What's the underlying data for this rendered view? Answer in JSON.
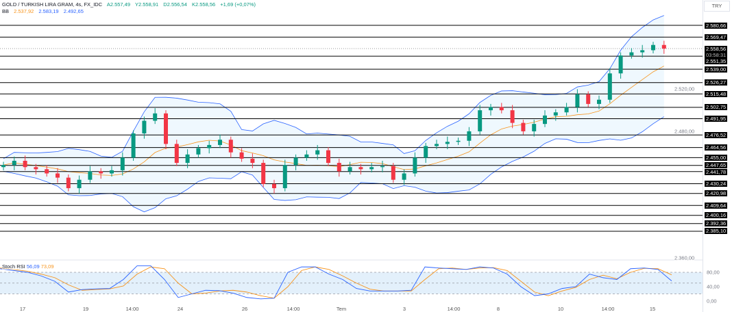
{
  "header": {
    "symbol": "GOLD / TURKISH LIRA GRAM, 4s, FX_IDC",
    "open": "A2.557,49",
    "high": "Y2.558,91",
    "low": "D2.556,54",
    "close": "K2.558,56",
    "change": "+1,69 (+0,07%)",
    "bb_label": "BB",
    "bb_basis": "2.537,92",
    "bb_upper": "2.583,19",
    "bb_lower": "2.492,65"
  },
  "currency": "TRY",
  "current_price": {
    "value": "2.558,56",
    "countdown": "03:58:31"
  },
  "levels": [
    2580.66,
    2569.47,
    2551.35,
    2539.0,
    2526.27,
    2515.48,
    2502.75,
    2491.95,
    2476.52,
    2464.56,
    2455.0,
    2447.65,
    2441.78,
    2430.24,
    2420.98,
    2409.64,
    2400.16,
    2392.36,
    2385.1
  ],
  "level_labels": [
    "2.580,66",
    "2.569,47",
    "2.551,35",
    "2.539,00",
    "2.526,27",
    "2.515,48",
    "2.502,75",
    "2.491,95",
    "2.476,52",
    "2.464,56",
    "2.455,00",
    "2.447,65",
    "2.441,78",
    "2.430,24",
    "2.420,98",
    "2.409,64",
    "2.400,16",
    "2.392,36",
    "2.385,10"
  ],
  "price_ticks": [
    {
      "v": 2520,
      "label": "2.520,00"
    },
    {
      "v": 2480,
      "label": "2.480,00"
    },
    {
      "v": 2360,
      "label": "2.360,00"
    }
  ],
  "stoch": {
    "label": "Stoch RSI",
    "k": "56,09",
    "d": "73,09",
    "ticks": [
      "80,00",
      "40,00",
      "0,00"
    ],
    "k_values": [
      90,
      85,
      80,
      70,
      55,
      25,
      32,
      34,
      35,
      60,
      98,
      98,
      60,
      10,
      20,
      30,
      29,
      22,
      10,
      6,
      8,
      80,
      95,
      95,
      75,
      60,
      35,
      28,
      28,
      28,
      30,
      95,
      92,
      90,
      88,
      95,
      92,
      75,
      40,
      15,
      20,
      35,
      40,
      75,
      65,
      60,
      90,
      92,
      88,
      56
    ],
    "d_values": [
      92,
      88,
      83,
      75,
      65,
      45,
      30,
      32,
      34,
      42,
      75,
      95,
      90,
      50,
      20,
      22,
      28,
      30,
      25,
      15,
      8,
      40,
      85,
      95,
      88,
      70,
      50,
      33,
      28,
      28,
      28,
      60,
      90,
      92,
      88,
      92,
      93,
      85,
      55,
      25,
      15,
      28,
      38,
      60,
      72,
      62,
      80,
      91,
      90,
      73
    ]
  },
  "x_labels": [
    "17",
    "19",
    "14:00",
    "24",
    "26",
    "14:00",
    "Tem",
    "3",
    "14:00",
    "8",
    "10",
    "14:00",
    "15"
  ],
  "colors": {
    "up": "#089981",
    "down": "#f23645",
    "bb": "#2962ff",
    "basis": "#f7931a",
    "k": "#2962ff",
    "d": "#f7931a"
  },
  "chart_data": {
    "type": "candlestick",
    "closes": [
      2448,
      2452,
      2446,
      2444,
      2440,
      2436,
      2426,
      2434,
      2442,
      2440,
      2443,
      2455,
      2478,
      2490,
      2497,
      2468,
      2450,
      2458,
      2464,
      2467,
      2472,
      2460,
      2454,
      2450,
      2430,
      2426,
      2448,
      2455,
      2458,
      2462,
      2450,
      2442,
      2446,
      2444,
      2446,
      2447,
      2434,
      2440,
      2455,
      2466,
      2468,
      2470,
      2471,
      2480,
      2500,
      2503,
      2500,
      2488,
      2480,
      2487,
      2495,
      2498,
      2503,
      2515,
      2506,
      2510,
      2535,
      2552,
      2555,
      2557,
      2562,
      2558.56
    ]
  }
}
